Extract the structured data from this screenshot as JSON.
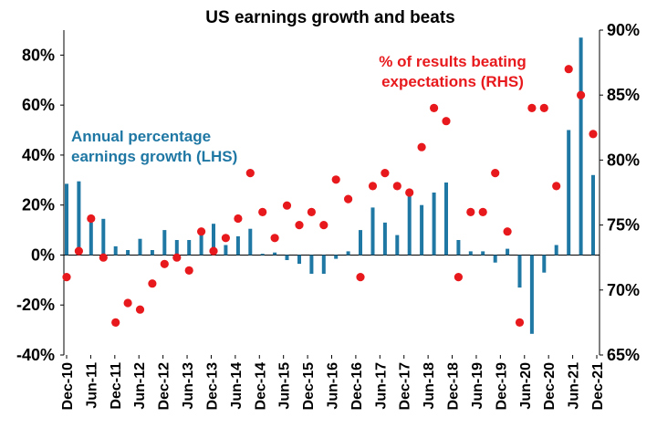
{
  "chart_data": {
    "type": "bar+scatter",
    "title": "US earnings growth and beats",
    "x_tick_labels": [
      "Dec-10",
      "Jun-11",
      "Dec-11",
      "Jun-12",
      "Dec-12",
      "Jun-13",
      "Dec-13",
      "Jun-14",
      "Dec-14",
      "Jun-15",
      "Dec-15",
      "Jun-16",
      "Dec-16",
      "Jun-17",
      "Dec-17",
      "Jun-18",
      "Dec-18",
      "Jun-19",
      "Dec-19",
      "Jun-20",
      "Dec-20",
      "Jun-21",
      "Dec-21"
    ],
    "left_axis": {
      "ylim": [
        -40,
        90
      ],
      "tick_values": [
        -40,
        -20,
        0,
        20,
        40,
        60,
        80
      ],
      "tick_labels": [
        "-40%",
        "-20%",
        "0%",
        "20%",
        "40%",
        "60%",
        "80%"
      ]
    },
    "right_axis": {
      "ylim": [
        65,
        90
      ],
      "tick_values": [
        65,
        70,
        75,
        80,
        85,
        90
      ],
      "tick_labels": [
        "65%",
        "70%",
        "75%",
        "80%",
        "85%",
        "90%"
      ]
    },
    "series": [
      {
        "name": "Annual percentage earnings growth (LHS)",
        "kind": "bar",
        "axis": "left",
        "color": "#1f77a4",
        "points": [
          {
            "t": 0,
            "v": 28.5
          },
          {
            "t": 1,
            "v": 29.5
          },
          {
            "t": 2,
            "v": 13
          },
          {
            "t": 3,
            "v": 14.5
          },
          {
            "t": 4,
            "v": 3.5
          },
          {
            "t": 5,
            "v": 2
          },
          {
            "t": 6,
            "v": 6.5
          },
          {
            "t": 7,
            "v": 2
          },
          {
            "t": 8,
            "v": 10
          },
          {
            "t": 9,
            "v": 6
          },
          {
            "t": 10,
            "v": 6
          },
          {
            "t": 11,
            "v": 9
          },
          {
            "t": 12,
            "v": 12.5
          },
          {
            "t": 13,
            "v": 4
          },
          {
            "t": 14,
            "v": 7.5
          },
          {
            "t": 15,
            "v": 10.5
          },
          {
            "t": 16,
            "v": 0.5
          },
          {
            "t": 17,
            "v": 1
          },
          {
            "t": 18,
            "v": -2
          },
          {
            "t": 19,
            "v": -3.5
          },
          {
            "t": 20,
            "v": -7.5
          },
          {
            "t": 21,
            "v": -7.5
          },
          {
            "t": 22,
            "v": -1.5
          },
          {
            "t": 23,
            "v": 1.5
          },
          {
            "t": 24,
            "v": 10
          },
          {
            "t": 25,
            "v": 19
          },
          {
            "t": 26,
            "v": 13
          },
          {
            "t": 27,
            "v": 8
          },
          {
            "t": 28,
            "v": 24
          },
          {
            "t": 29,
            "v": 20
          },
          {
            "t": 30,
            "v": 25
          },
          {
            "t": 31,
            "v": 29
          },
          {
            "t": 32,
            "v": 6
          },
          {
            "t": 33,
            "v": 1.5
          },
          {
            "t": 34,
            "v": 1.5
          },
          {
            "t": 35,
            "v": -3
          },
          {
            "t": 36,
            "v": 2.5
          },
          {
            "t": 37,
            "v": -13
          },
          {
            "t": 38,
            "v": -31.5
          },
          {
            "t": 39,
            "v": -7
          },
          {
            "t": 40,
            "v": 4
          },
          {
            "t": 41,
            "v": 50
          },
          {
            "t": 42,
            "v": 87
          },
          {
            "t": 43,
            "v": 32
          }
        ]
      },
      {
        "name": "% of results beating expectations (RHS)",
        "kind": "scatter",
        "axis": "right",
        "color": "#e8191c",
        "points": [
          {
            "t": 0,
            "v": 71
          },
          {
            "t": 1,
            "v": 73
          },
          {
            "t": 2,
            "v": 75.5
          },
          {
            "t": 3,
            "v": 72.5
          },
          {
            "t": 4,
            "v": 67.5
          },
          {
            "t": 5,
            "v": 69
          },
          {
            "t": 6,
            "v": 68.5
          },
          {
            "t": 7,
            "v": 70.5
          },
          {
            "t": 8,
            "v": 72
          },
          {
            "t": 9,
            "v": 72.5
          },
          {
            "t": 10,
            "v": 71.5
          },
          {
            "t": 11,
            "v": 74.5
          },
          {
            "t": 12,
            "v": 73
          },
          {
            "t": 13,
            "v": 74
          },
          {
            "t": 14,
            "v": 75.5
          },
          {
            "t": 15,
            "v": 79
          },
          {
            "t": 16,
            "v": 76
          },
          {
            "t": 17,
            "v": 74
          },
          {
            "t": 18,
            "v": 76.5
          },
          {
            "t": 19,
            "v": 75
          },
          {
            "t": 20,
            "v": 76
          },
          {
            "t": 21,
            "v": 75
          },
          {
            "t": 22,
            "v": 78.5
          },
          {
            "t": 23,
            "v": 77
          },
          {
            "t": 24,
            "v": 71
          },
          {
            "t": 25,
            "v": 78
          },
          {
            "t": 26,
            "v": 79
          },
          {
            "t": 27,
            "v": 78
          },
          {
            "t": 28,
            "v": 77.5
          },
          {
            "t": 29,
            "v": 81
          },
          {
            "t": 30,
            "v": 84
          },
          {
            "t": 31,
            "v": 83
          },
          {
            "t": 32,
            "v": 71
          },
          {
            "t": 33,
            "v": 76
          },
          {
            "t": 34,
            "v": 76
          },
          {
            "t": 35,
            "v": 79
          },
          {
            "t": 36,
            "v": 74.5
          },
          {
            "t": 37,
            "v": 67.5
          },
          {
            "t": 38,
            "v": 84
          },
          {
            "t": 39,
            "v": 84
          },
          {
            "t": 40,
            "v": 78
          },
          {
            "t": 41,
            "v": 87
          },
          {
            "t": 42,
            "v": 85
          },
          {
            "t": 43,
            "v": 82
          }
        ]
      }
    ],
    "annotations": [
      {
        "lines": [
          "Annual percentage",
          "earnings growth (LHS)"
        ],
        "color": "#1f77a4"
      },
      {
        "lines": [
          "% of results beating",
          "expectations (RHS)"
        ],
        "color": "#e8191c"
      }
    ],
    "grid": false,
    "legend": "none"
  }
}
